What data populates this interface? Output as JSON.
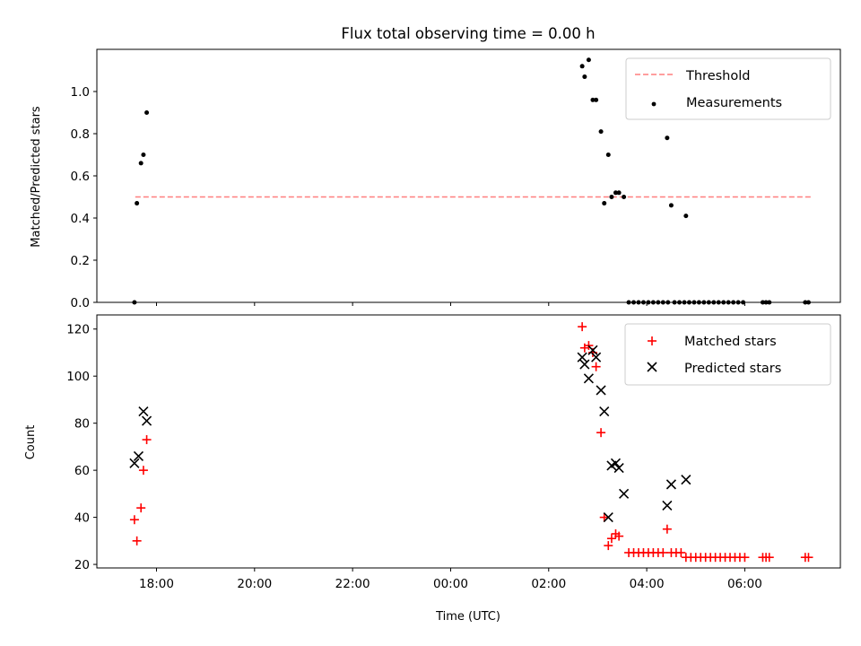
{
  "chart_data": [
    {
      "type": "scatter",
      "title": "Flux total observing time = 0.00 h",
      "xlabel": "",
      "ylabel": "Matched/Predicted stars",
      "ylim": [
        0,
        1.2
      ],
      "yticks": [
        "0.0",
        "0.2",
        "0.4",
        "0.6",
        "0.8",
        "1.0"
      ],
      "xlim": [
        "16:47",
        "07:57"
      ],
      "legend": {
        "placement": "top-right"
      },
      "threshold": {
        "name": "Threshold",
        "y": 0.5,
        "x_start": "17:34",
        "x_end": "07:23",
        "color": "#ff7f7f",
        "style": "dashed"
      },
      "series": [
        {
          "name": "Measurements",
          "color": "#000000",
          "marker": "dot",
          "points": [
            [
              "17:33",
              0.0
            ],
            [
              "17:36",
              0.47
            ],
            [
              "17:41",
              0.66
            ],
            [
              "17:44",
              0.7
            ],
            [
              "17:48",
              0.9
            ],
            [
              "02:41",
              1.12
            ],
            [
              "02:44",
              1.07
            ],
            [
              "02:49",
              1.15
            ],
            [
              "02:54",
              0.96
            ],
            [
              "02:58",
              0.96
            ],
            [
              "03:04",
              0.81
            ],
            [
              "03:08",
              0.47
            ],
            [
              "03:13",
              0.7
            ],
            [
              "03:17",
              0.5
            ],
            [
              "03:22",
              0.52
            ],
            [
              "03:26",
              0.52
            ],
            [
              "03:32",
              0.5
            ],
            [
              "04:25",
              0.78
            ],
            [
              "04:30",
              0.46
            ],
            [
              "04:48",
              0.41
            ],
            [
              "03:38",
              0.0
            ],
            [
              "03:44",
              0.0
            ],
            [
              "03:50",
              0.0
            ],
            [
              "03:56",
              0.0
            ],
            [
              "04:02",
              0.0
            ],
            [
              "04:08",
              0.0
            ],
            [
              "04:14",
              0.0
            ],
            [
              "04:20",
              0.0
            ],
            [
              "04:26",
              0.0
            ],
            [
              "04:34",
              0.0
            ],
            [
              "04:40",
              0.0
            ],
            [
              "04:46",
              0.0
            ],
            [
              "04:52",
              0.0
            ],
            [
              "04:58",
              0.0
            ],
            [
              "05:04",
              0.0
            ],
            [
              "05:10",
              0.0
            ],
            [
              "05:16",
              0.0
            ],
            [
              "05:22",
              0.0
            ],
            [
              "05:28",
              0.0
            ],
            [
              "05:34",
              0.0
            ],
            [
              "05:40",
              0.0
            ],
            [
              "05:46",
              0.0
            ],
            [
              "05:52",
              0.0
            ],
            [
              "05:58",
              0.0
            ],
            [
              "06:22",
              0.0
            ],
            [
              "06:26",
              0.0
            ],
            [
              "06:30",
              0.0
            ],
            [
              "07:14",
              0.0
            ],
            [
              "07:18",
              0.0
            ]
          ]
        }
      ]
    },
    {
      "type": "scatter",
      "title": "",
      "xlabel": "Time (UTC)",
      "ylabel": "Count",
      "ylim": [
        18.5,
        126
      ],
      "yticks": [
        "20",
        "40",
        "60",
        "80",
        "100",
        "120"
      ],
      "xlim": [
        "16:47",
        "07:57"
      ],
      "xticks": [
        "18:00",
        "20:00",
        "22:00",
        "00:00",
        "02:00",
        "04:00",
        "06:00"
      ],
      "legend": {
        "placement": "top-right"
      },
      "series": [
        {
          "name": "Matched stars",
          "color": "#ff0000",
          "marker": "plus",
          "points": [
            [
              "17:33",
              39
            ],
            [
              "17:36",
              30
            ],
            [
              "17:41",
              44
            ],
            [
              "17:44",
              60
            ],
            [
              "17:48",
              73
            ],
            [
              "02:41",
              121
            ],
            [
              "02:44",
              112
            ],
            [
              "02:49",
              113
            ],
            [
              "02:54",
              110
            ],
            [
              "02:58",
              104
            ],
            [
              "03:04",
              76
            ],
            [
              "03:08",
              40
            ],
            [
              "03:13",
              28
            ],
            [
              "03:17",
              31
            ],
            [
              "03:22",
              33
            ],
            [
              "03:26",
              32
            ],
            [
              "03:38",
              25
            ],
            [
              "03:44",
              25
            ],
            [
              "03:50",
              25
            ],
            [
              "03:56",
              25
            ],
            [
              "04:02",
              25
            ],
            [
              "04:08",
              25
            ],
            [
              "04:14",
              25
            ],
            [
              "04:20",
              25
            ],
            [
              "04:25",
              35
            ],
            [
              "04:30",
              25
            ],
            [
              "04:36",
              25
            ],
            [
              "04:42",
              25
            ],
            [
              "04:48",
              23
            ],
            [
              "04:54",
              23
            ],
            [
              "05:00",
              23
            ],
            [
              "05:06",
              23
            ],
            [
              "05:12",
              23
            ],
            [
              "05:18",
              23
            ],
            [
              "05:24",
              23
            ],
            [
              "05:30",
              23
            ],
            [
              "05:36",
              23
            ],
            [
              "05:42",
              23
            ],
            [
              "05:48",
              23
            ],
            [
              "05:54",
              23
            ],
            [
              "06:00",
              23
            ],
            [
              "06:22",
              23
            ],
            [
              "06:26",
              23
            ],
            [
              "06:30",
              23
            ],
            [
              "07:14",
              23
            ],
            [
              "07:18",
              23
            ]
          ]
        },
        {
          "name": "Predicted stars",
          "color": "#000000",
          "marker": "cross",
          "points": [
            [
              "17:33",
              63
            ],
            [
              "17:38",
              66
            ],
            [
              "17:44",
              85
            ],
            [
              "17:48",
              81
            ],
            [
              "02:41",
              108
            ],
            [
              "02:44",
              105
            ],
            [
              "02:49",
              99
            ],
            [
              "02:54",
              111
            ],
            [
              "02:58",
              108
            ],
            [
              "03:04",
              94
            ],
            [
              "03:08",
              85
            ],
            [
              "03:13",
              40
            ],
            [
              "03:17",
              62
            ],
            [
              "03:22",
              63
            ],
            [
              "03:26",
              61
            ],
            [
              "03:32",
              50
            ],
            [
              "04:25",
              45
            ],
            [
              "04:30",
              54
            ],
            [
              "04:48",
              56
            ]
          ]
        }
      ]
    }
  ]
}
